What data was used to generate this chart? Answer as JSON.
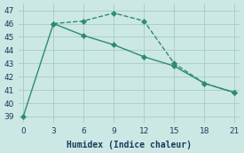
{
  "line1_x": [
    0,
    3,
    6,
    9,
    12,
    15,
    18,
    21
  ],
  "line1_y": [
    39,
    46,
    45.1,
    44.4,
    43.5,
    42.8,
    41.5,
    40.8
  ],
  "line2_x": [
    3,
    6,
    9,
    12,
    15,
    18,
    21
  ],
  "line2_y": [
    46,
    46.2,
    46.8,
    46.2,
    43.0,
    41.5,
    40.8
  ],
  "color": "#2e8b70",
  "bg_color": "#cce8e4",
  "grid_color": "#aacfca",
  "xlabel": "Humidex (Indice chaleur)",
  "ylim": [
    38.5,
    47.5
  ],
  "xlim": [
    -0.5,
    21.5
  ],
  "xticks": [
    0,
    3,
    6,
    9,
    12,
    15,
    18,
    21
  ],
  "yticks": [
    39,
    40,
    41,
    42,
    43,
    44,
    45,
    46,
    47
  ],
  "markersize": 3.0,
  "linewidth": 1.0,
  "tick_labelsize": 6.5,
  "xlabel_fontsize": 7.0
}
